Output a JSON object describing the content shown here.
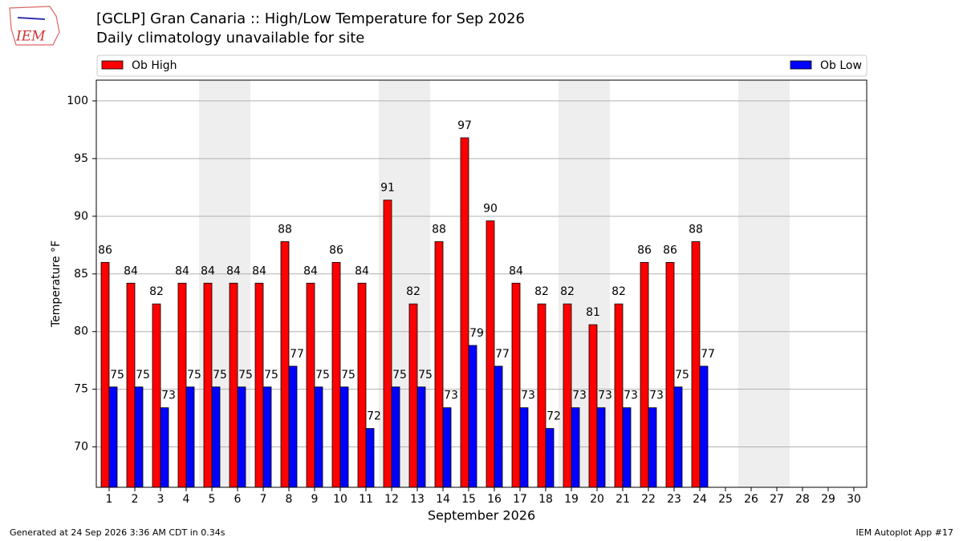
{
  "logo": "IEM",
  "footer_left": "Generated at 24 Sep 2026 3:36 AM CDT in 0.34s",
  "footer_right": "IEM Autoplot App #17",
  "chart_data": {
    "type": "bar",
    "title": "[GCLP] Gran Canaria :: High/Low Temperature for Sep 2026",
    "subtitle": "Daily climatology unavailable for site",
    "xlabel": "September 2026",
    "ylabel": "Temperature °F",
    "categories": [
      "1",
      "2",
      "3",
      "4",
      "5",
      "6",
      "7",
      "8",
      "9",
      "10",
      "11",
      "12",
      "13",
      "14",
      "15",
      "16",
      "17",
      "18",
      "19",
      "20",
      "21",
      "22",
      "23",
      "24",
      "25",
      "26",
      "27",
      "28",
      "29",
      "30"
    ],
    "series": [
      {
        "name": "Ob High",
        "color": "#ff0000",
        "values": [
          86,
          84.2,
          82.4,
          84.2,
          84.2,
          84.2,
          84.2,
          87.8,
          84.2,
          86,
          84.2,
          91.4,
          82.4,
          87.8,
          96.8,
          89.6,
          84.2,
          82.4,
          82.4,
          80.6,
          82.4,
          86,
          86,
          87.8,
          null,
          null,
          null,
          null,
          null,
          null
        ],
        "value_labels": [
          "86",
          "84",
          "82",
          "84",
          "84",
          "84",
          "84",
          "88",
          "84",
          "86",
          "84",
          "91",
          "82",
          "88",
          "97",
          "90",
          "84",
          "82",
          "82",
          "81",
          "82",
          "86",
          "86",
          "88",
          null,
          null,
          null,
          null,
          null,
          null
        ]
      },
      {
        "name": "Ob Low",
        "color": "#0000ff",
        "values": [
          75.2,
          75.2,
          73.4,
          75.2,
          75.2,
          75.2,
          75.2,
          77,
          75.2,
          75.2,
          71.6,
          75.2,
          75.2,
          73.4,
          78.8,
          77,
          73.4,
          71.6,
          73.4,
          73.4,
          73.4,
          73.4,
          75.2,
          77,
          null,
          null,
          null,
          null,
          null,
          null
        ],
        "value_labels": [
          "75",
          "75",
          "73",
          "75",
          "75",
          "75",
          "75",
          "77",
          "75",
          "75",
          "72",
          "75",
          "75",
          "73",
          "79",
          "77",
          "73",
          "72",
          "73",
          "73",
          "73",
          "73",
          "75",
          "77",
          null,
          null,
          null,
          null,
          null,
          null
        ]
      }
    ],
    "ylim": [
      66.5,
      101.8
    ],
    "yticks": [
      70,
      75,
      80,
      85,
      90,
      95,
      100
    ],
    "grid": true
  }
}
